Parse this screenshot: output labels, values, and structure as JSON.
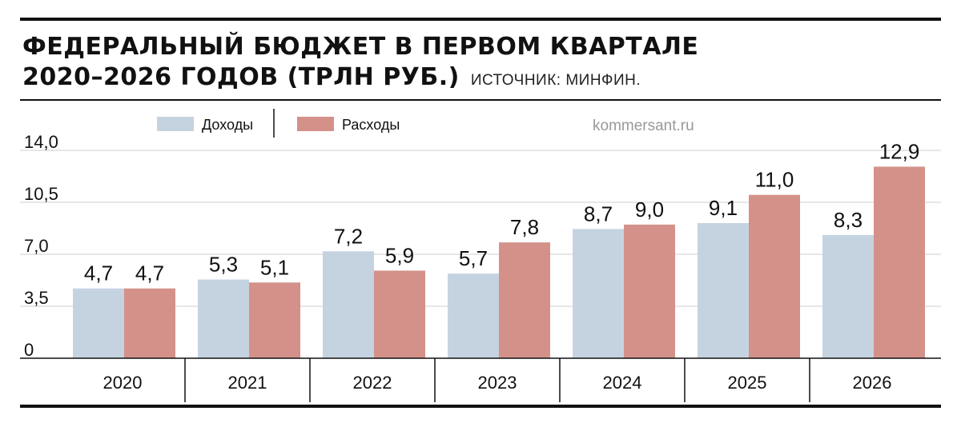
{
  "header": {
    "title_line1": "ФЕДЕРАЛЬНЫЙ БЮДЖЕТ В ПЕРВОМ КВАРТАЛЕ",
    "title_line2": "2020–2026 ГОДОВ (ТРЛН РУБ.)",
    "source": "ИСТОЧНИК: МИНФИН."
  },
  "watermark": "kommersant.ru",
  "colors": {
    "income": "#c5d3e1",
    "expense": "#d4918a",
    "text": "#111111",
    "grid": "#cfcfcf"
  },
  "chart_data": {
    "type": "bar",
    "title": "ФЕДЕРАЛЬНЫЙ БЮДЖЕТ В ПЕРВОМ КВАРТАЛЕ 2020–2026 ГОДОВ (ТРЛН РУБ.)",
    "categories": [
      "2020",
      "2021",
      "2022",
      "2023",
      "2024",
      "2025",
      "2026"
    ],
    "series": [
      {
        "name": "Доходы",
        "values": [
          4.7,
          5.3,
          7.2,
          5.7,
          8.7,
          9.1,
          8.3
        ],
        "labels": [
          "4,7",
          "5,3",
          "7,2",
          "5,7",
          "8,7",
          "9,1",
          "8,3"
        ]
      },
      {
        "name": "Расходы",
        "values": [
          4.7,
          5.1,
          5.9,
          7.8,
          9.0,
          11.0,
          12.9
        ],
        "labels": [
          "4,7",
          "5,1",
          "5,9",
          "7,8",
          "9,0",
          "11,0",
          "12,9"
        ]
      }
    ],
    "yticks": [
      0,
      3.5,
      7.0,
      10.5,
      14.0
    ],
    "ytick_labels": [
      "0",
      "3,5",
      "7,0",
      "10,5",
      "14,0"
    ],
    "ylim": [
      0,
      14
    ],
    "grid": true,
    "legend": "top-left"
  }
}
